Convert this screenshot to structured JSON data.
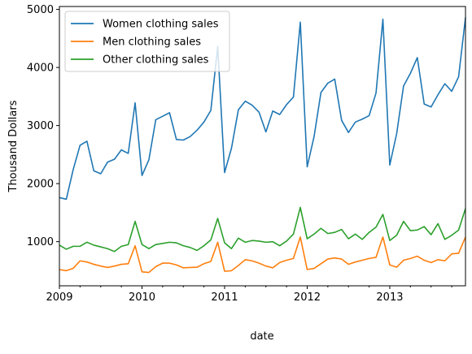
{
  "chart_data": {
    "type": "line",
    "xlabel": "date",
    "ylabel": "Thousand Dollars",
    "x_range": [
      "2009-01",
      "2013-12"
    ],
    "ylim": [
      240,
      5050
    ],
    "x_ticks": [
      "2009",
      "2010",
      "2011",
      "2012",
      "2013"
    ],
    "y_ticks": [
      1000,
      2000,
      3000,
      4000,
      5000
    ],
    "grid": false,
    "legend_position": "top-left",
    "x": [
      "2009-01",
      "2009-02",
      "2009-03",
      "2009-04",
      "2009-05",
      "2009-06",
      "2009-07",
      "2009-08",
      "2009-09",
      "2009-10",
      "2009-11",
      "2009-12",
      "2010-01",
      "2010-02",
      "2010-03",
      "2010-04",
      "2010-05",
      "2010-06",
      "2010-07",
      "2010-08",
      "2010-09",
      "2010-10",
      "2010-11",
      "2010-12",
      "2011-01",
      "2011-02",
      "2011-03",
      "2011-04",
      "2011-05",
      "2011-06",
      "2011-07",
      "2011-08",
      "2011-09",
      "2011-10",
      "2011-11",
      "2011-12",
      "2012-01",
      "2012-02",
      "2012-03",
      "2012-04",
      "2012-05",
      "2012-06",
      "2012-07",
      "2012-08",
      "2012-09",
      "2012-10",
      "2012-11",
      "2012-12",
      "2013-01",
      "2013-02",
      "2013-03",
      "2013-04",
      "2013-05",
      "2013-06",
      "2013-07",
      "2013-08",
      "2013-09",
      "2013-10",
      "2013-11",
      "2013-12"
    ],
    "series": [
      {
        "name": "Women clothing sales",
        "color": "#1f77b4",
        "values": [
          1760,
          1730,
          2240,
          2660,
          2730,
          2220,
          2170,
          2370,
          2420,
          2580,
          2520,
          3390,
          2140,
          2410,
          3100,
          3160,
          3220,
          2760,
          2750,
          2810,
          2920,
          3060,
          3260,
          4360,
          2190,
          2610,
          3270,
          3420,
          3350,
          3230,
          2890,
          3250,
          3190,
          3360,
          3490,
          4780,
          2290,
          2810,
          3570,
          3730,
          3800,
          3090,
          2880,
          3060,
          3110,
          3170,
          3560,
          4830,
          2320,
          2860,
          3680,
          3900,
          4170,
          3370,
          3320,
          3530,
          3720,
          3590,
          3840,
          4860
        ]
      },
      {
        "name": "Men clothing sales",
        "color": "#ff7f0e",
        "values": [
          520,
          500,
          540,
          670,
          650,
          610,
          580,
          555,
          580,
          610,
          620,
          930,
          480,
          470,
          570,
          630,
          630,
          600,
          550,
          555,
          560,
          620,
          660,
          990,
          490,
          500,
          590,
          690,
          670,
          630,
          580,
          550,
          640,
          680,
          710,
          1080,
          520,
          540,
          620,
          700,
          720,
          700,
          610,
          650,
          680,
          710,
          730,
          1080,
          600,
          560,
          680,
          710,
          750,
          680,
          640,
          690,
          670,
          790,
          800,
          1080
        ]
      },
      {
        "name": "Other clothing sales",
        "color": "#2ca02c",
        "values": [
          940,
          870,
          920,
          920,
          990,
          940,
          910,
          880,
          830,
          920,
          950,
          1350,
          950,
          880,
          950,
          970,
          990,
          980,
          930,
          900,
          850,
          930,
          1030,
          1400,
          980,
          880,
          1060,
          990,
          1020,
          1010,
          990,
          1000,
          930,
          1010,
          1130,
          1590,
          1050,
          1130,
          1230,
          1140,
          1160,
          1210,
          1050,
          1130,
          1040,
          1160,
          1250,
          1470,
          1020,
          1110,
          1350,
          1190,
          1200,
          1260,
          1120,
          1310,
          1040,
          1110,
          1200,
          1570
        ]
      }
    ]
  }
}
